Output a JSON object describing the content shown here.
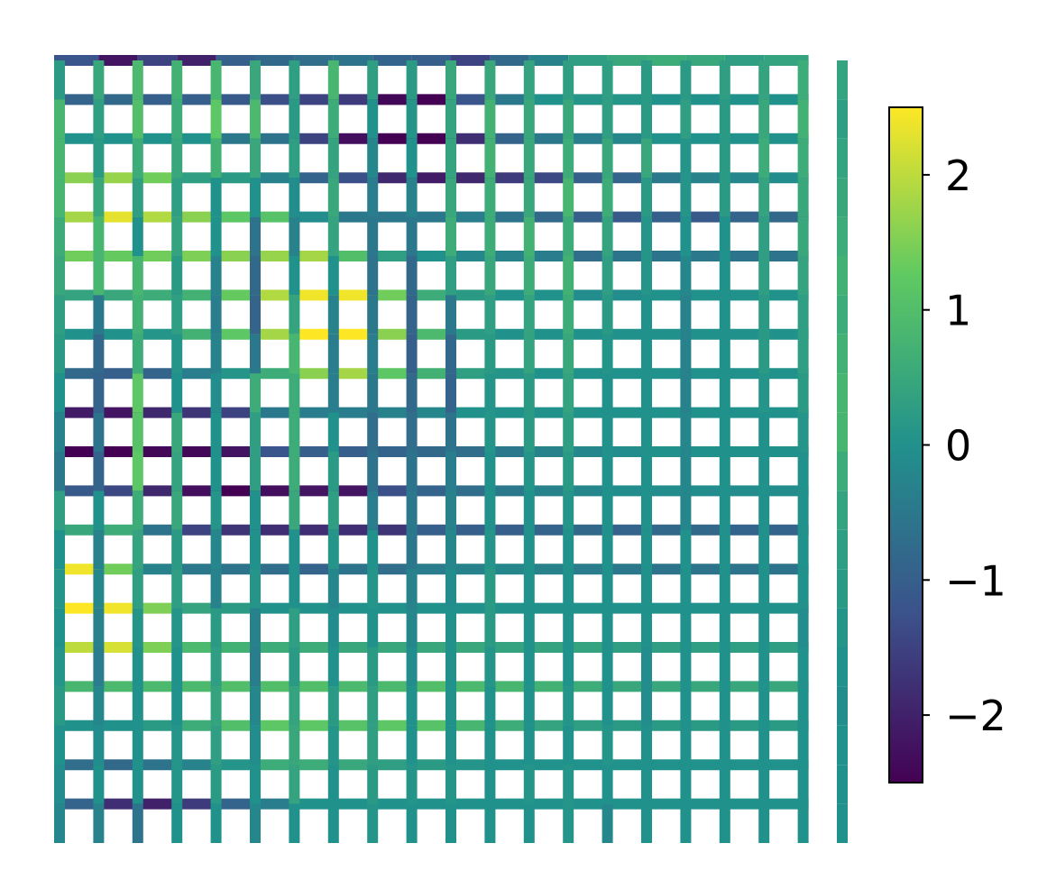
{
  "chart_data": {
    "type": "heatmap",
    "title": "",
    "xlabel": "",
    "ylabel": "",
    "axes_visible": false,
    "grid_size": {
      "rows": 20,
      "cols": 20
    },
    "colormap": "viridis",
    "colormap_stops": [
      "#440154",
      "#3b528b",
      "#21918c",
      "#5ec962",
      "#fde725"
    ],
    "value_range": [
      -2.5,
      2.5
    ],
    "colorbar": {
      "position": "right",
      "ticks": [
        -2,
        -1,
        0,
        1,
        2
      ],
      "tick_labels": [
        "−2",
        "−1",
        "0",
        "1",
        "2"
      ]
    },
    "horizontal_edges": [
      [
        -1.2,
        -2.2,
        -1.5,
        -2.0,
        -1.0,
        -0.8,
        -0.7,
        -0.6,
        -0.9,
        -1.0,
        -1.5,
        -0.8,
        -0.3,
        0.3,
        0.5,
        0.6,
        0.5,
        0.3,
        0.4
      ],
      [
        -0.9,
        -0.8,
        -1.0,
        -1.0,
        -1.1,
        -1.3,
        -1.5,
        -1.6,
        -2.4,
        -2.5,
        -1.2,
        -0.5,
        0.0,
        0.1,
        0.1,
        0.0,
        0.0,
        0.0,
        0.0
      ],
      [
        0.0,
        0.0,
        0.0,
        0.0,
        -0.5,
        -0.6,
        -1.5,
        -2.3,
        -2.6,
        -2.6,
        -1.8,
        -0.9,
        -0.5,
        -0.4,
        -0.2,
        0.0,
        0.0,
        0.0,
        0.0
      ],
      [
        1.6,
        1.7,
        1.4,
        0.3,
        0.2,
        -0.3,
        -0.9,
        -1.3,
        -1.9,
        -2.1,
        -1.9,
        -1.6,
        -1.4,
        -1.0,
        -0.9,
        -0.5,
        -0.3,
        -0.2,
        -0.1
      ],
      [
        1.8,
        2.3,
        1.9,
        1.6,
        1.2,
        1.1,
        -0.1,
        -0.5,
        -0.5,
        -0.5,
        -0.4,
        -0.6,
        -0.8,
        -1.0,
        -1.1,
        -1.0,
        -1.1,
        -0.9,
        -0.8
      ],
      [
        1.4,
        1.3,
        1.4,
        1.5,
        1.6,
        1.7,
        1.8,
        1.0,
        0.3,
        0.0,
        -0.2,
        -0.3,
        -0.4,
        -0.7,
        -0.6,
        -0.6,
        -0.5,
        -0.6,
        -0.6
      ],
      [
        0.4,
        0.5,
        0.6,
        0.7,
        1.3,
        1.9,
        2.4,
        2.4,
        1.4,
        0.6,
        0.2,
        0.0,
        0.0,
        -0.1,
        -0.1,
        0.0,
        0.0,
        0.0,
        0.0
      ],
      [
        0.0,
        0.0,
        0.1,
        0.7,
        1.2,
        1.8,
        2.5,
        2.5,
        1.6,
        0.9,
        0.2,
        0.0,
        0.0,
        0.0,
        0.0,
        0.0,
        0.0,
        0.0,
        0.0
      ],
      [
        -0.8,
        -1.0,
        -0.9,
        -0.4,
        0.1,
        0.6,
        1.6,
        1.8,
        1.2,
        0.7,
        0.3,
        0.1,
        0.0,
        0.0,
        0.0,
        0.0,
        0.0,
        0.0,
        0.0
      ],
      [
        -2.1,
        -2.2,
        -1.9,
        -1.7,
        -1.5,
        -0.5,
        -0.4,
        -0.4,
        -0.3,
        -0.2,
        0.0,
        0.0,
        0.0,
        0.0,
        0.0,
        0.0,
        0.0,
        0.0,
        0.0
      ],
      [
        -2.6,
        -2.6,
        -2.4,
        -2.4,
        -2.2,
        -1.2,
        -1.0,
        -1.0,
        -0.9,
        -0.8,
        -0.7,
        -0.5,
        -0.3,
        -0.2,
        -0.1,
        0.0,
        0.0,
        0.0,
        0.0
      ],
      [
        -1.1,
        -1.4,
        -1.9,
        -2.3,
        -2.5,
        -2.3,
        -2.2,
        -2.2,
        -1.3,
        -0.9,
        -0.7,
        -0.5,
        -0.3,
        -0.2,
        -0.1,
        -0.1,
        -0.1,
        -0.1,
        -0.1
      ],
      [
        0.5,
        0.6,
        -0.6,
        -1.5,
        -1.7,
        -1.8,
        -1.8,
        -1.8,
        -1.7,
        -1.0,
        -1.0,
        -1.0,
        -0.9,
        -0.8,
        -0.9,
        -0.8,
        -0.8,
        -0.9,
        -0.9
      ],
      [
        2.4,
        1.4,
        -0.3,
        -0.5,
        -0.6,
        -0.7,
        -0.9,
        -0.6,
        -0.7,
        -0.4,
        -0.3,
        -0.2,
        -0.3,
        -0.4,
        -0.5,
        -0.6,
        -0.6,
        -0.6,
        -0.6
      ],
      [
        2.5,
        2.4,
        1.5,
        0.4,
        0.2,
        0.0,
        0.0,
        0.0,
        0.0,
        0.0,
        0.0,
        0.0,
        0.0,
        0.0,
        0.0,
        0.0,
        0.0,
        0.0,
        0.0
      ],
      [
        2.0,
        2.2,
        1.5,
        0.9,
        0.7,
        0.6,
        0.6,
        0.5,
        0.5,
        0.5,
        0.5,
        0.4,
        0.4,
        0.4,
        0.3,
        0.3,
        0.3,
        0.3,
        0.3
      ],
      [
        0.8,
        0.9,
        0.9,
        0.9,
        1.0,
        1.0,
        1.0,
        0.9,
        0.9,
        1.0,
        0.9,
        0.8,
        0.7,
        0.6,
        0.5,
        0.5,
        0.5,
        0.5,
        0.5
      ],
      [
        0.0,
        0.0,
        0.2,
        0.6,
        1.0,
        1.2,
        1.2,
        1.1,
        1.2,
        1.1,
        0.8,
        0.6,
        0.4,
        0.3,
        0.2,
        0.2,
        0.2,
        0.2,
        0.2
      ],
      [
        -0.7,
        -0.8,
        -0.6,
        -0.3,
        0.1,
        0.6,
        0.6,
        0.5,
        0.3,
        0.2,
        0.1,
        0.0,
        0.0,
        0.0,
        0.0,
        0.0,
        0.0,
        0.0,
        0.0
      ],
      [
        -0.9,
        -1.8,
        -2.0,
        -1.6,
        -0.9,
        -0.4,
        0.0,
        0.0,
        0.0,
        0.0,
        0.0,
        0.0,
        0.0,
        0.0,
        0.0,
        0.0,
        0.0,
        0.0,
        0.0
      ]
    ],
    "vertical_edges": [
      [
        0.2,
        0.8,
        0.8,
        0.8,
        0.6,
        0.5,
        0.3,
        0.2,
        0.0,
        -0.3,
        -0.5,
        0.3,
        0.0,
        0.1,
        0.0,
        0.1,
        0.2,
        0.0,
        -0.1,
        -0.2
      ],
      [
        0.5,
        0.3,
        0.2,
        0.5,
        0.8,
        0.8,
        -0.5,
        -0.8,
        -0.9,
        -0.6,
        -0.9,
        0.0,
        -0.3,
        -0.2,
        -0.3,
        -0.4,
        -0.2,
        -0.1,
        0.0,
        -0.3
      ],
      [
        0.9,
        1.0,
        0.6,
        0.3,
        0.0,
        0.8,
        0.7,
        0.6,
        1.2,
        1.1,
        1.2,
        0.6,
        0.4,
        0.3,
        0.1,
        0.0,
        0.0,
        0.0,
        0.0,
        -0.6
      ],
      [
        0.7,
        0.6,
        0.5,
        0.3,
        0.4,
        0.2,
        0.3,
        0.1,
        0.0,
        0.5,
        0.4,
        0.5,
        0.2,
        0.3,
        0.1,
        0.0,
        0.0,
        0.1,
        0.1,
        0.0
      ],
      [
        0.8,
        1.2,
        0.7,
        0.0,
        0.0,
        -0.3,
        -0.4,
        -0.3,
        -0.1,
        0.0,
        0.0,
        0.1,
        -0.2,
        -0.3,
        0.2,
        0.3,
        0.4,
        0.3,
        0.2,
        0.0
      ],
      [
        0.5,
        0.9,
        0.5,
        0.0,
        -0.6,
        -0.8,
        -0.9,
        -0.5,
        0.6,
        0.3,
        0.3,
        0.0,
        0.0,
        0.1,
        -0.3,
        -0.4,
        -0.2,
        -0.1,
        0.0,
        -0.2
      ],
      [
        0.3,
        0.2,
        0.3,
        -0.1,
        -0.3,
        0.0,
        0.4,
        0.8,
        0.6,
        0.6,
        0.6,
        0.5,
        0.0,
        0.0,
        0.3,
        0.2,
        0.4,
        0.5,
        0.4,
        0.0
      ],
      [
        0.8,
        0.6,
        0.4,
        0.5,
        0.4,
        0.0,
        -0.3,
        -0.4,
        -0.4,
        0.0,
        0.2,
        0.3,
        0.1,
        -0.2,
        -0.1,
        0.0,
        0.2,
        0.1,
        0.0,
        0.0
      ],
      [
        0.3,
        0.0,
        -0.2,
        -0.4,
        -0.5,
        -0.6,
        -0.5,
        -0.4,
        -0.5,
        -0.7,
        -0.6,
        -0.4,
        0.0,
        0.1,
        0.0,
        0.2,
        0.3,
        0.3,
        0.2,
        0.1
      ],
      [
        0.2,
        0.1,
        0.0,
        -0.3,
        -0.5,
        -0.8,
        -0.9,
        -1.0,
        -0.8,
        -0.7,
        -0.6,
        -0.5,
        -0.5,
        -0.3,
        -0.2,
        -0.1,
        0.0,
        0.0,
        0.1,
        0.0
      ],
      [
        0.5,
        0.4,
        0.4,
        0.5,
        0.6,
        0.3,
        -0.5,
        -0.8,
        -0.9,
        -0.6,
        -0.4,
        -0.3,
        -0.2,
        -0.1,
        0.0,
        0.0,
        0.0,
        0.0,
        0.1,
        0.0
      ],
      [
        0.5,
        0.7,
        0.7,
        0.6,
        0.6,
        0.5,
        0.3,
        0.2,
        0.1,
        0.1,
        0.0,
        0.0,
        0.1,
        0.2,
        0.2,
        0.1,
        0.0,
        0.0,
        0.0,
        0.0
      ],
      [
        0.4,
        0.5,
        0.5,
        0.5,
        0.7,
        0.6,
        0.4,
        0.4,
        0.2,
        0.2,
        0.1,
        0.0,
        0.0,
        0.0,
        0.0,
        0.0,
        0.0,
        0.0,
        0.1,
        0.0
      ],
      [
        0.3,
        0.5,
        0.6,
        0.8,
        0.6,
        0.7,
        0.6,
        0.5,
        0.4,
        0.3,
        0.2,
        0.1,
        0.0,
        0.0,
        0.0,
        0.0,
        0.1,
        0.0,
        0.1,
        0.1
      ],
      [
        0.3,
        0.3,
        0.5,
        0.6,
        0.4,
        0.3,
        0.2,
        0.1,
        0.0,
        0.0,
        0.0,
        0.0,
        0.0,
        0.0,
        0.0,
        0.0,
        0.0,
        0.1,
        0.0,
        -0.2
      ],
      [
        0.2,
        0.2,
        0.5,
        0.2,
        0.1,
        0.1,
        0.0,
        0.0,
        0.0,
        0.0,
        0.0,
        0.0,
        0.0,
        0.0,
        0.0,
        -0.1,
        -0.1,
        0.0,
        0.0,
        0.0
      ],
      [
        0.2,
        0.3,
        0.1,
        0.1,
        0.0,
        -0.2,
        -0.3,
        -0.3,
        -0.3,
        -0.2,
        -0.2,
        -0.2,
        0.0,
        0.0,
        0.0,
        0.0,
        0.0,
        0.0,
        0.0,
        0.0
      ],
      [
        0.3,
        0.2,
        0.2,
        0.2,
        0.0,
        0.0,
        0.0,
        0.0,
        0.0,
        0.0,
        0.0,
        0.0,
        0.0,
        0.0,
        0.0,
        0.0,
        0.0,
        0.0,
        0.0,
        0.0
      ],
      [
        0.4,
        0.5,
        0.6,
        0.4,
        0.3,
        0.3,
        0.2,
        0.2,
        0.1,
        0.0,
        0.0,
        0.0,
        0.0,
        0.0,
        0.0,
        0.0,
        0.0,
        0.0,
        0.0,
        0.0
      ],
      [
        0.6,
        0.7,
        0.6,
        0.5,
        0.5,
        0.4,
        0.3,
        0.3,
        0.2,
        0.1,
        0.0,
        0.0,
        0.0,
        0.0,
        -0.1,
        0.0,
        0.0,
        0.0,
        0.0,
        0.0
      ],
      [
        0.4,
        0.3,
        0.4,
        0.5,
        0.6,
        0.7,
        0.6,
        0.7,
        0.8,
        0.8,
        0.6,
        0.4,
        0.3,
        0.2,
        0.1,
        0.0,
        -0.1,
        0.0,
        0.0,
        0.0
      ]
    ]
  }
}
